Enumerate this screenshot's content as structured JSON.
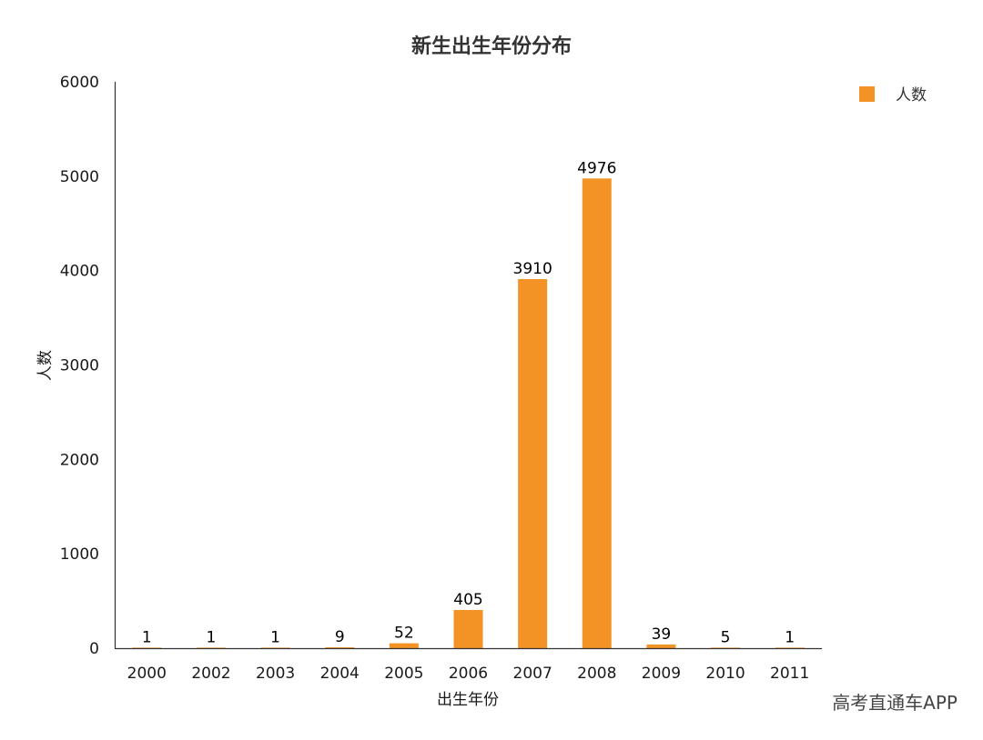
{
  "chart_data": {
    "type": "bar",
    "title": "新生出生年份分布",
    "xlabel": "出生年份",
    "ylabel": "人数",
    "categories": [
      "2000",
      "2002",
      "2003",
      "2004",
      "2005",
      "2006",
      "2007",
      "2008",
      "2009",
      "2010",
      "2011"
    ],
    "series": [
      {
        "name": "人数",
        "values": [
          1,
          1,
          1,
          9,
          52,
          405,
          3910,
          4976,
          39,
          5,
          1
        ]
      }
    ],
    "ylim": [
      0,
      6000
    ],
    "yticks": [
      "0",
      "1000",
      "2000",
      "3000",
      "4000",
      "5000",
      "6000"
    ],
    "grid": false,
    "legend": "top-right",
    "bar_color": "#F39325"
  },
  "watermark": "高考直通车APP"
}
